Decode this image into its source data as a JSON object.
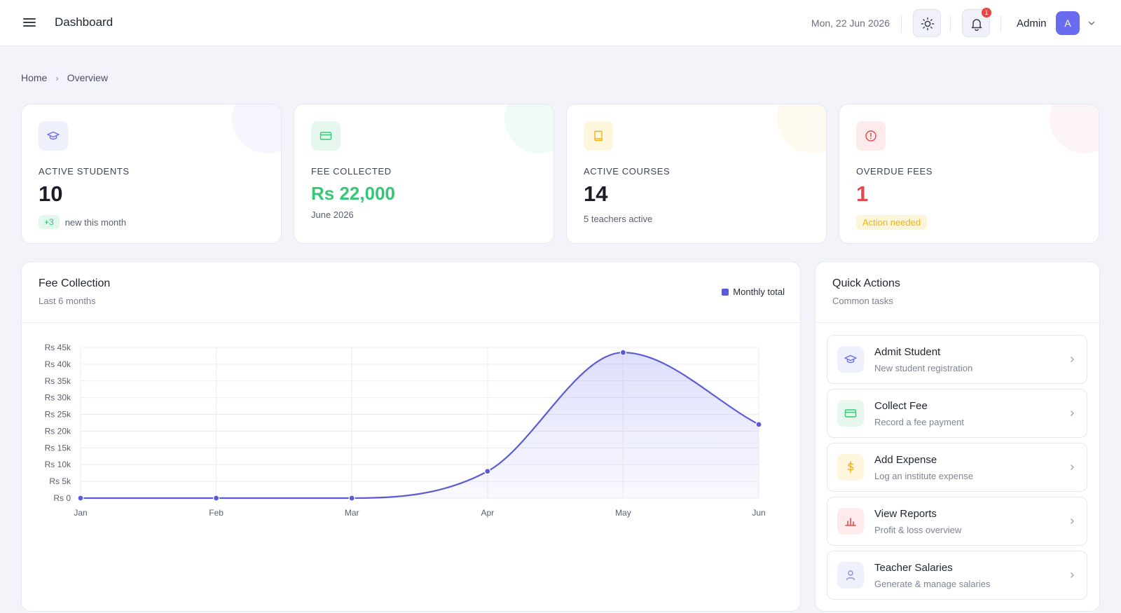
{
  "header": {
    "title": "Dashboard",
    "date": "Mon, 22 Jun 2026",
    "notification_count": "1",
    "user_name": "Admin",
    "avatar_initial": "A"
  },
  "breadcrumb": [
    "Home",
    "Overview"
  ],
  "stats": [
    {
      "label": "ACTIVE STUDENTS",
      "value": "10",
      "badge": "+3",
      "sub": "new this month",
      "accent": "#6a6cf0",
      "icon": "graduation-cap-icon"
    },
    {
      "label": "FEE COLLECTED",
      "value": "Rs 22,000",
      "sub": "June 2026",
      "accent": "#34c775",
      "icon": "credit-card-icon"
    },
    {
      "label": "ACTIVE COURSES",
      "value": "14",
      "sub": "5 teachers active",
      "accent": "#f0b316",
      "icon": "book-icon"
    },
    {
      "label": "OVERDUE FEES",
      "value": "1",
      "badge": "Action needed",
      "accent": "#e5484d",
      "icon": "alert-circle-icon"
    }
  ],
  "fee_chart": {
    "title": "Fee Collection",
    "subtitle": "Last 6 months",
    "legend": "Monthly total"
  },
  "chart_data": {
    "type": "area",
    "x": [
      "Jan",
      "Feb",
      "Mar",
      "Apr",
      "May",
      "Jun"
    ],
    "series": [
      {
        "name": "Monthly total",
        "values": [
          0,
          0,
          0,
          8000,
          43500,
          22000
        ]
      }
    ],
    "yticks": [
      "Rs 0",
      "Rs 5k",
      "Rs 10k",
      "Rs 15k",
      "Rs 20k",
      "Rs 25k",
      "Rs 30k",
      "Rs 35k",
      "Rs 40k",
      "Rs 45k"
    ],
    "ylim": [
      0,
      45000
    ],
    "grid": true,
    "legend_position": "top-right",
    "color": "#5b5bd6"
  },
  "quick_actions": {
    "title": "Quick Actions",
    "subtitle": "Common tasks",
    "items": [
      {
        "title": "Admit Student",
        "desc": "New student registration",
        "accent": "#6a6cf0",
        "icon": "graduation-cap-icon"
      },
      {
        "title": "Collect Fee",
        "desc": "Record a fee payment",
        "accent": "#34c775",
        "icon": "credit-card-icon"
      },
      {
        "title": "Add Expense",
        "desc": "Log an institute expense",
        "accent": "#f0b316",
        "icon": "dollar-icon"
      },
      {
        "title": "View Reports",
        "desc": "Profit & loss overview",
        "accent": "#e5484d",
        "icon": "bar-chart-icon"
      },
      {
        "title": "Teacher Salaries",
        "desc": "Generate & manage salaries",
        "accent": "#8b8fd8",
        "icon": "user-icon"
      }
    ]
  }
}
